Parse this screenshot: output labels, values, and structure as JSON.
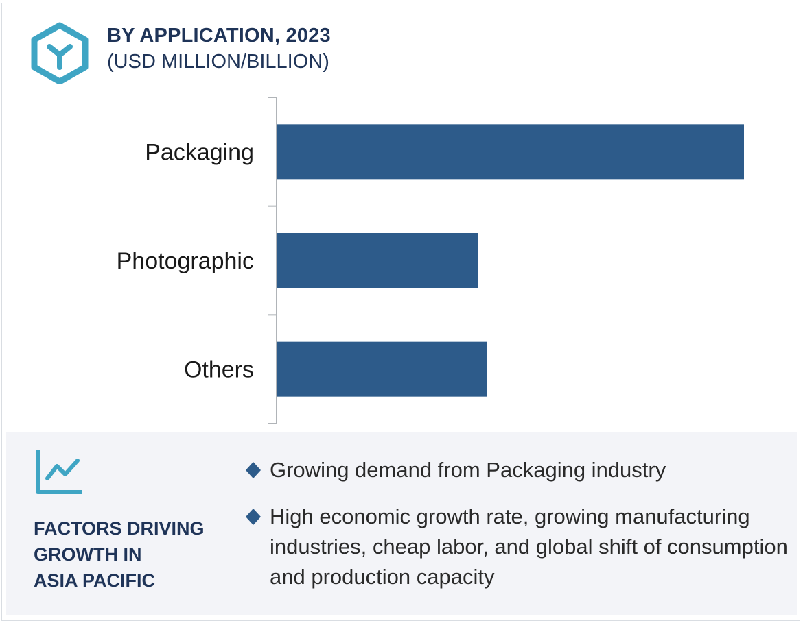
{
  "header": {
    "title": "BY APPLICATION, 2023",
    "subtitle": "(USD MILLION/BILLION)"
  },
  "colors": {
    "bar": "#2d5b8a",
    "accent": "#3fa5c4",
    "navy": "#1f3458",
    "axis": "#b0b4b8"
  },
  "icons": {
    "logo": "hexagon-y-logo-icon",
    "trend": "line-chart-icon",
    "bullet": "diamond-bullet-icon"
  },
  "chart_data": {
    "type": "bar",
    "orientation": "horizontal",
    "categories": [
      "Packaging",
      "Photographic",
      "Others"
    ],
    "values": [
      100,
      43,
      45
    ],
    "title": "BY APPLICATION, 2023",
    "xlabel": "",
    "ylabel": "",
    "xlim": [
      0,
      100
    ],
    "grid": false,
    "legend": "none"
  },
  "factors": {
    "title_lines": [
      "FACTORS DRIVING",
      "GROWTH IN",
      "ASIA PACIFIC"
    ],
    "items": [
      "Growing demand from Packaging industry",
      "High economic growth rate, growing manufacturing industries, cheap labor, and global shift of consumption and production capacity"
    ]
  }
}
